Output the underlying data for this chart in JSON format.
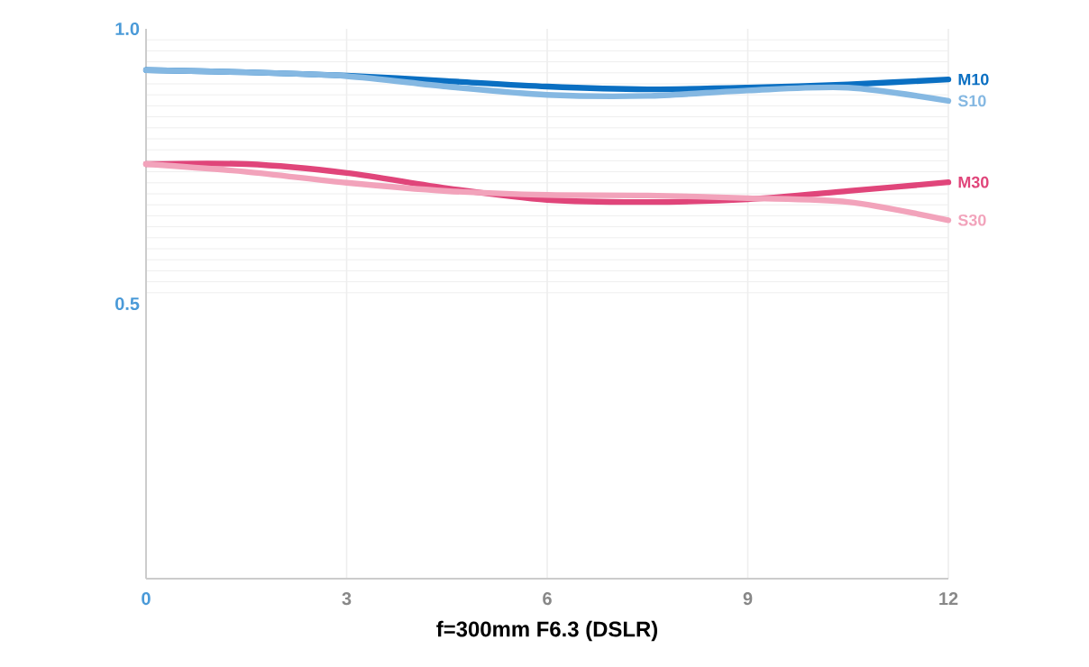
{
  "chart_data": {
    "type": "line",
    "xlabel": "f=300mm F6.3 **(DSLR)**",
    "x": [
      0,
      1.5,
      3,
      4.5,
      6,
      7.5,
      9,
      10.5,
      12
    ],
    "series": [
      {
        "name": "M10",
        "color": "#0a6fc2",
        "values": [
          0.925,
          0.921,
          0.915,
          0.905,
          0.895,
          0.89,
          0.893,
          0.899,
          0.908
        ]
      },
      {
        "name": "S10",
        "color": "#85b8e2",
        "values": [
          0.925,
          0.921,
          0.914,
          0.895,
          0.88,
          0.878,
          0.888,
          0.893,
          0.869
        ]
      },
      {
        "name": "M30",
        "color": "#e0457a",
        "values": [
          0.754,
          0.754,
          0.738,
          0.71,
          0.689,
          0.685,
          0.69,
          0.705,
          0.721
        ]
      },
      {
        "name": "S30",
        "color": "#f2a3bb",
        "values": [
          0.754,
          0.74,
          0.72,
          0.705,
          0.698,
          0.697,
          0.692,
          0.685,
          0.652
        ]
      }
    ],
    "xlim": [
      0,
      12
    ],
    "ylim": [
      0,
      1
    ],
    "xticks": [
      0,
      3,
      6,
      9,
      12
    ],
    "yticks": [
      0.5,
      {
        "value": 1,
        "label": "1.0"
      }
    ],
    "grid": true,
    "marker": "none",
    "line_style": "solid",
    "legend": false
  }
}
